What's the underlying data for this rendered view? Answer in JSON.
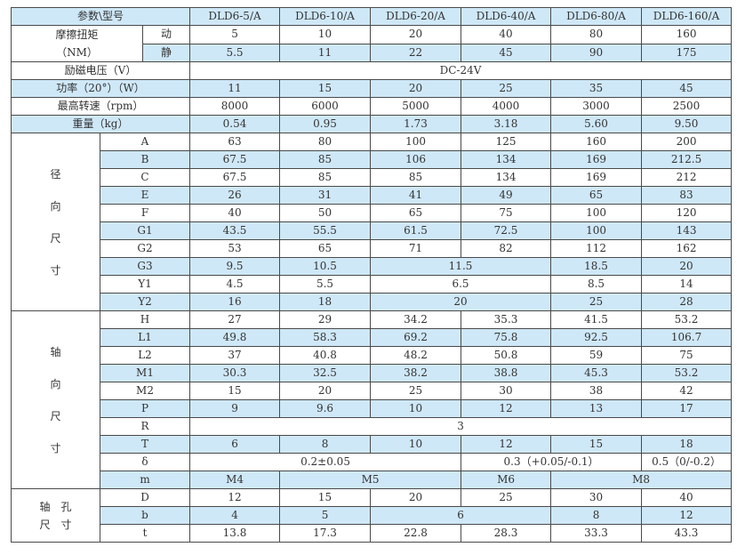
{
  "header": {
    "label": "参数\\型号",
    "models": [
      "DLD6-5/A",
      "DLD6-10/A",
      "DLD6-20/A",
      "DLD6-40/A",
      "DLD6-80/A",
      "DLD6-160/A"
    ]
  },
  "torque": {
    "label": "摩擦扭矩",
    "unit": "（NM）",
    "rows": [
      {
        "label": "动",
        "cells": [
          {
            "v": "5"
          },
          {
            "v": "10"
          },
          {
            "v": "20"
          },
          {
            "v": "40"
          },
          {
            "v": "80"
          },
          {
            "v": "160"
          }
        ]
      },
      {
        "label": "静",
        "cells": [
          {
            "v": "5.5"
          },
          {
            "v": "11"
          },
          {
            "v": "22"
          },
          {
            "v": "45"
          },
          {
            "v": "90"
          },
          {
            "v": "175"
          }
        ]
      }
    ]
  },
  "general": [
    {
      "label": "励磁电压（V）",
      "cells": [
        {
          "v": "DC-24V",
          "span": 6
        }
      ]
    },
    {
      "label": "功率（20°）（W）",
      "cells": [
        {
          "v": "11"
        },
        {
          "v": "15"
        },
        {
          "v": "20"
        },
        {
          "v": "25"
        },
        {
          "v": "35"
        },
        {
          "v": "45"
        }
      ]
    },
    {
      "label": "最高转速（rpm）",
      "cells": [
        {
          "v": "8000"
        },
        {
          "v": "6000"
        },
        {
          "v": "5000"
        },
        {
          "v": "4000"
        },
        {
          "v": "3000"
        },
        {
          "v": "2500"
        }
      ]
    },
    {
      "label": "重量（kg）",
      "cells": [
        {
          "v": "0.54"
        },
        {
          "v": "0.95"
        },
        {
          "v": "1.73"
        },
        {
          "v": "3.18"
        },
        {
          "v": "5.60"
        },
        {
          "v": "9.50"
        }
      ]
    }
  ],
  "sections": [
    {
      "title": [
        "径",
        "向",
        "尺",
        "寸"
      ],
      "rows": [
        {
          "label": "A",
          "cells": [
            {
              "v": "63"
            },
            {
              "v": "80"
            },
            {
              "v": "100"
            },
            {
              "v": "125"
            },
            {
              "v": "160"
            },
            {
              "v": "200"
            }
          ]
        },
        {
          "label": "B",
          "cells": [
            {
              "v": "67.5"
            },
            {
              "v": "85"
            },
            {
              "v": "106"
            },
            {
              "v": "134"
            },
            {
              "v": "169"
            },
            {
              "v": "212.5"
            }
          ]
        },
        {
          "label": "C",
          "cells": [
            {
              "v": "67.5"
            },
            {
              "v": "85"
            },
            {
              "v": "85"
            },
            {
              "v": "134"
            },
            {
              "v": "169"
            },
            {
              "v": "212"
            }
          ]
        },
        {
          "label": "E",
          "cells": [
            {
              "v": "26"
            },
            {
              "v": "31"
            },
            {
              "v": "41"
            },
            {
              "v": "49"
            },
            {
              "v": "65"
            },
            {
              "v": "83"
            }
          ]
        },
        {
          "label": "F",
          "cells": [
            {
              "v": "40"
            },
            {
              "v": "50"
            },
            {
              "v": "65"
            },
            {
              "v": "75"
            },
            {
              "v": "100"
            },
            {
              "v": "120"
            }
          ]
        },
        {
          "label": "G1",
          "cells": [
            {
              "v": "43.5"
            },
            {
              "v": "55.5"
            },
            {
              "v": "61.5"
            },
            {
              "v": "72.5"
            },
            {
              "v": "100"
            },
            {
              "v": "143"
            }
          ]
        },
        {
          "label": "G2",
          "cells": [
            {
              "v": "53"
            },
            {
              "v": "65"
            },
            {
              "v": "71"
            },
            {
              "v": "82"
            },
            {
              "v": "112"
            },
            {
              "v": "162"
            }
          ]
        },
        {
          "label": "G3",
          "cells": [
            {
              "v": "9.5"
            },
            {
              "v": "10.5"
            },
            {
              "v": "11.5",
              "span": 2
            },
            {
              "v": "18.5"
            },
            {
              "v": "20"
            }
          ]
        },
        {
          "label": "Y1",
          "cells": [
            {
              "v": "4.5"
            },
            {
              "v": "5.5"
            },
            {
              "v": "6.5",
              "span": 2
            },
            {
              "v": "8.5"
            },
            {
              "v": "14"
            }
          ]
        },
        {
          "label": "Y2",
          "cells": [
            {
              "v": "16"
            },
            {
              "v": "18"
            },
            {
              "v": "20",
              "span": 2
            },
            {
              "v": "25"
            },
            {
              "v": "28"
            }
          ]
        }
      ]
    },
    {
      "title": [
        "轴",
        "向",
        "尺",
        "寸"
      ],
      "rows": [
        {
          "label": "H",
          "cells": [
            {
              "v": "27"
            },
            {
              "v": "29"
            },
            {
              "v": "34.2"
            },
            {
              "v": "35.3"
            },
            {
              "v": "41.5"
            },
            {
              "v": "53.2"
            }
          ]
        },
        {
          "label": "L1",
          "cells": [
            {
              "v": "49.8"
            },
            {
              "v": "58.3"
            },
            {
              "v": "69.2"
            },
            {
              "v": "75.8"
            },
            {
              "v": "92.5"
            },
            {
              "v": "106.7"
            }
          ]
        },
        {
          "label": "L2",
          "cells": [
            {
              "v": "37"
            },
            {
              "v": "40.8"
            },
            {
              "v": "48.2"
            },
            {
              "v": "50.8"
            },
            {
              "v": "59"
            },
            {
              "v": "75"
            }
          ]
        },
        {
          "label": "M1",
          "cells": [
            {
              "v": "30.3"
            },
            {
              "v": "32.5"
            },
            {
              "v": "38.2"
            },
            {
              "v": "38.8"
            },
            {
              "v": "45.3"
            },
            {
              "v": "53.2"
            }
          ]
        },
        {
          "label": "M2",
          "cells": [
            {
              "v": "15"
            },
            {
              "v": "20"
            },
            {
              "v": "25"
            },
            {
              "v": "30"
            },
            {
              "v": "38"
            },
            {
              "v": "42"
            }
          ]
        },
        {
          "label": "P",
          "cells": [
            {
              "v": "9"
            },
            {
              "v": "9.6"
            },
            {
              "v": "10"
            },
            {
              "v": "12"
            },
            {
              "v": "13"
            },
            {
              "v": "17"
            }
          ]
        },
        {
          "label": "R",
          "cells": [
            {
              "v": "3",
              "span": 6
            }
          ]
        },
        {
          "label": "T",
          "cells": [
            {
              "v": "6"
            },
            {
              "v": "8"
            },
            {
              "v": "10"
            },
            {
              "v": "12"
            },
            {
              "v": "15"
            },
            {
              "v": "18"
            }
          ]
        },
        {
          "label": "δ",
          "cells": [
            {
              "v": "0.2±0.05",
              "span": 3
            },
            {
              "v": "0.3（+0.05/-0.1）",
              "span": 2
            },
            {
              "v": "0.5（0/-0.2）"
            }
          ]
        },
        {
          "label": "m",
          "cells": [
            {
              "v": "M4"
            },
            {
              "v": "M5",
              "span": 2
            },
            {
              "v": "M6"
            },
            {
              "v": "M8",
              "span": 2
            }
          ]
        }
      ]
    },
    {
      "title": [
        "轴　孔",
        "尺　寸"
      ],
      "rows": [
        {
          "label": "D",
          "cells": [
            {
              "v": "12"
            },
            {
              "v": "15"
            },
            {
              "v": "20"
            },
            {
              "v": "25"
            },
            {
              "v": "30"
            },
            {
              "v": "40"
            }
          ]
        },
        {
          "label": "b",
          "cells": [
            {
              "v": "4"
            },
            {
              "v": "5"
            },
            {
              "v": "6",
              "span": 2
            },
            {
              "v": "8"
            },
            {
              "v": "12"
            }
          ]
        },
        {
          "label": "t",
          "cells": [
            {
              "v": "13.8"
            },
            {
              "v": "17.3"
            },
            {
              "v": "22.8"
            },
            {
              "v": "28.3"
            },
            {
              "v": "33.3"
            },
            {
              "v": "43.3"
            }
          ]
        }
      ]
    }
  ],
  "colors": {
    "row_alt": "#cfe8f8",
    "border": "#4a4a4a"
  }
}
